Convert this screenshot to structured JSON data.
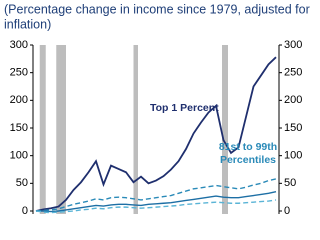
{
  "chart_data": {
    "type": "line",
    "title_lines": [
      "(Percentage change in income since 1979, adjusted for",
      "inflation)"
    ],
    "categories": [
      null,
      null,
      null,
      null,
      null,
      null,
      null,
      null,
      null,
      null,
      null,
      null,
      null,
      null,
      null,
      null,
      null,
      null,
      null,
      null,
      null,
      null,
      null,
      null,
      null,
      null,
      null,
      null,
      null,
      null,
      null,
      null,
      null
    ],
    "series": [
      {
        "name": "Top 1 Percent",
        "color": "#1f2f6e",
        "dash": false,
        "values": [
          0,
          3,
          5,
          8,
          20,
          38,
          52,
          70,
          90,
          48,
          82,
          76,
          70,
          52,
          62,
          50,
          55,
          63,
          75,
          90,
          112,
          140,
          160,
          178,
          190,
          128,
          105,
          115,
          170,
          225,
          245,
          265,
          278
        ]
      },
      {
        "name": "81st to 99th Percentiles",
        "color": "#2a8ab8",
        "dash": true,
        "values": [
          0,
          1,
          2,
          4,
          8,
          12,
          15,
          18,
          22,
          20,
          24,
          25,
          24,
          22,
          20,
          22,
          24,
          26,
          28,
          32,
          36,
          40,
          42,
          44,
          46,
          44,
          42,
          40,
          43,
          47,
          50,
          55,
          58
        ]
      },
      {
        "color": "#1d6fa5",
        "dash": false,
        "values": [
          0,
          0,
          -1,
          0,
          2,
          4,
          6,
          8,
          10,
          9,
          11,
          12,
          12,
          11,
          10,
          12,
          13,
          14,
          15,
          17,
          19,
          21,
          23,
          25,
          27,
          25,
          24,
          24,
          26,
          28,
          30,
          32,
          35
        ]
      },
      {
        "color": "#5ab4d6",
        "dash": true,
        "values": [
          0,
          -2,
          -3,
          -2,
          -1,
          0,
          2,
          3,
          5,
          4,
          6,
          7,
          7,
          6,
          5,
          6,
          7,
          8,
          9,
          10,
          12,
          13,
          14,
          15,
          16,
          15,
          14,
          14,
          15,
          16,
          17,
          18,
          20
        ]
      }
    ],
    "annotations": [
      [
        "Top 1 Percent"
      ],
      [
        "81st to 99th",
        "Percentiles"
      ]
    ],
    "shading": [
      [
        0.5,
        1.3
      ],
      [
        2.7,
        4
      ],
      [
        13,
        13.6
      ],
      [
        24.8,
        25.6
      ]
    ],
    "shading_color": "#bdbdbd",
    "ylim": [
      0,
      300
    ],
    "yticks": [
      0,
      50,
      100,
      150,
      200,
      250,
      300
    ],
    "y2lim": [
      0,
      300
    ],
    "y2ticks": [
      0,
      50,
      100,
      150,
      200,
      250,
      300
    ]
  }
}
